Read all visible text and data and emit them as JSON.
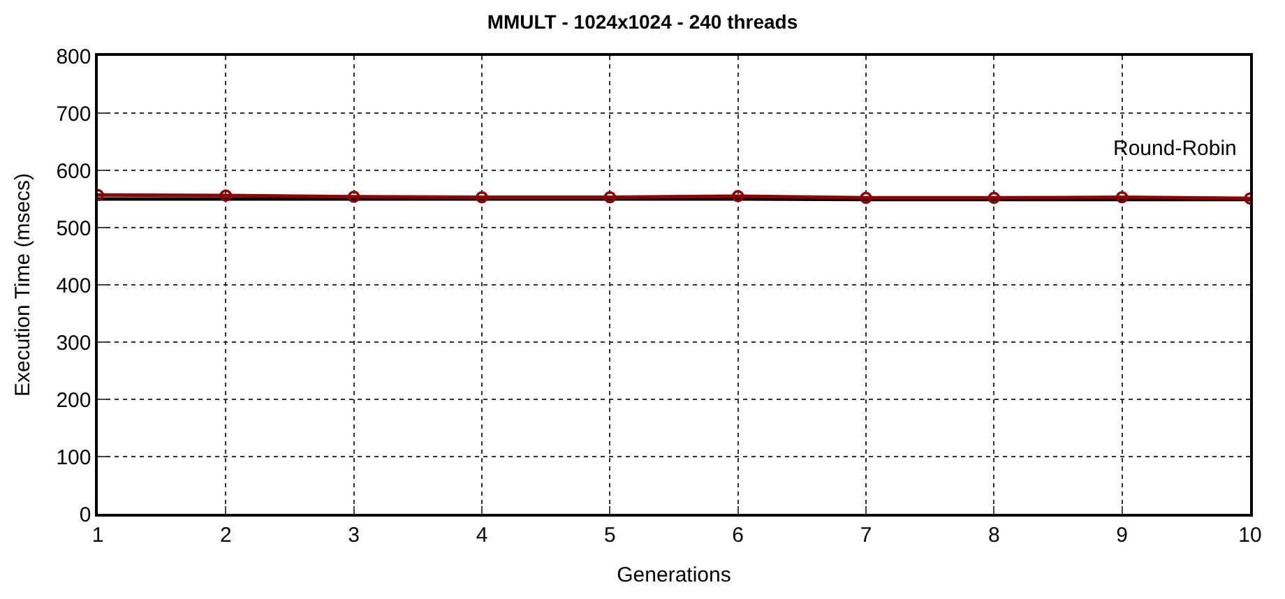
{
  "chart_data": {
    "type": "line",
    "title": "MMULT - 1024x1024 - 240 threads",
    "xlabel": "Generations",
    "ylabel": "Execution Time (msecs)",
    "x": [
      1,
      2,
      3,
      4,
      5,
      6,
      7,
      8,
      9,
      10
    ],
    "series": [
      {
        "color": "#000000",
        "values": [
          550,
          550,
          550,
          550,
          550,
          550,
          549,
          549,
          549,
          549
        ],
        "marker": "none"
      },
      {
        "color": "#8b0000",
        "values": [
          557,
          556,
          554,
          553,
          553,
          555,
          552,
          552,
          553,
          551
        ],
        "marker": "circle"
      }
    ],
    "annotations": [
      "Round-Robin"
    ],
    "xlim": [
      1,
      10
    ],
    "xticks": [
      1,
      2,
      3,
      4,
      5,
      6,
      7,
      8,
      9,
      10
    ],
    "ylim": [
      0,
      800
    ],
    "yticks": [
      0,
      100,
      200,
      300,
      400,
      500,
      600,
      700,
      800
    ],
    "grid": true,
    "line_style": "solid"
  }
}
